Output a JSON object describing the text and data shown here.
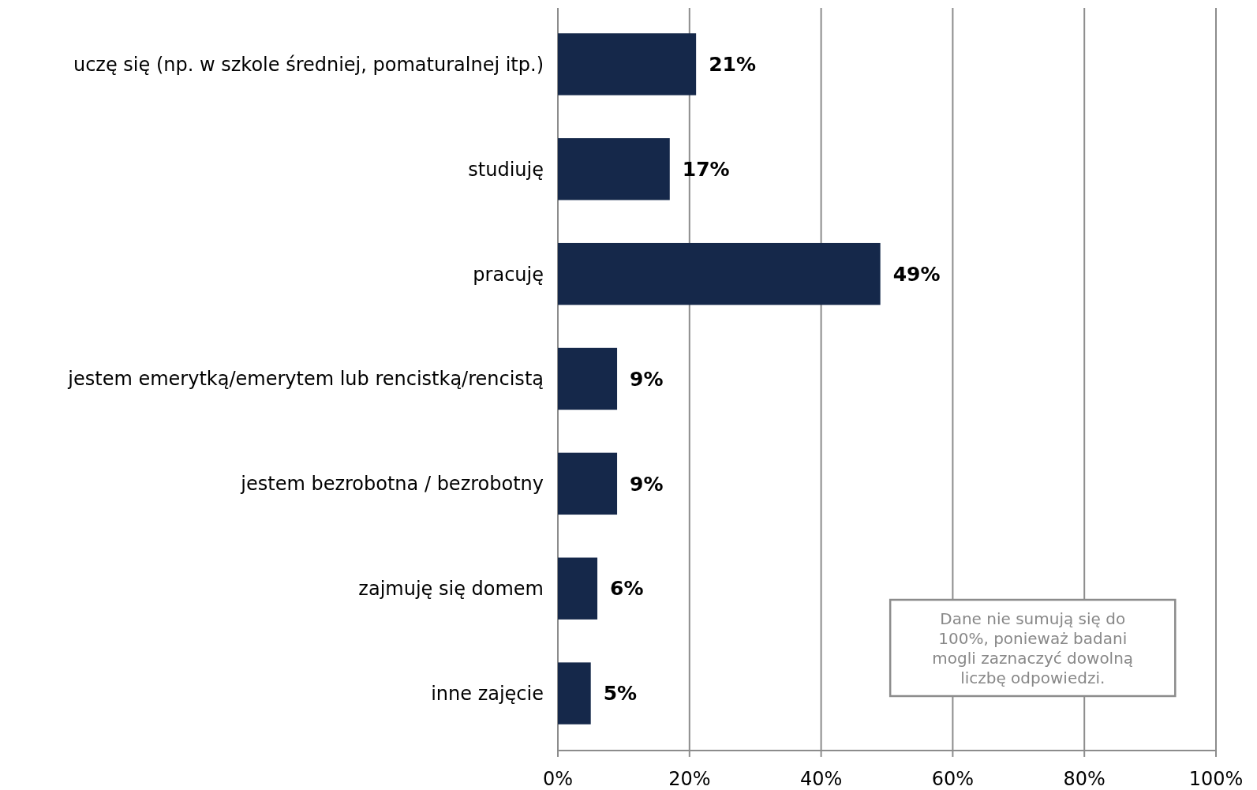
{
  "chart_data": {
    "type": "bar",
    "orientation": "horizontal",
    "categories": [
      "uczę się (np. w szkole średniej, pomaturalnej itp.)",
      "studiuję",
      "pracuję",
      "jestem emerytką/emerytem lub rencistką/rencistą",
      "jestem bezrobotna / bezrobotny",
      "zajmuję się domem",
      "inne zajęcie"
    ],
    "values": [
      21,
      17,
      49,
      9,
      9,
      6,
      5
    ],
    "color": "#15284a",
    "value_labels": [
      "21%",
      "17%",
      "49%",
      "9%",
      "9%",
      "6%",
      "5%"
    ],
    "xlim": [
      0,
      100
    ],
    "xticks": [
      {
        "value": 0,
        "label": "0%"
      },
      {
        "value": 20,
        "label": "20%"
      },
      {
        "value": 40,
        "label": "40%"
      },
      {
        "value": 60,
        "label": "60%"
      },
      {
        "value": 80,
        "label": "80%"
      },
      {
        "value": 100,
        "label": "100%"
      }
    ],
    "grid": "x",
    "annotations": [
      "Dane nie sumują się do 100%, ponieważ badani mogli zaznaczyć dowolną liczbę odpowiedzi."
    ]
  }
}
